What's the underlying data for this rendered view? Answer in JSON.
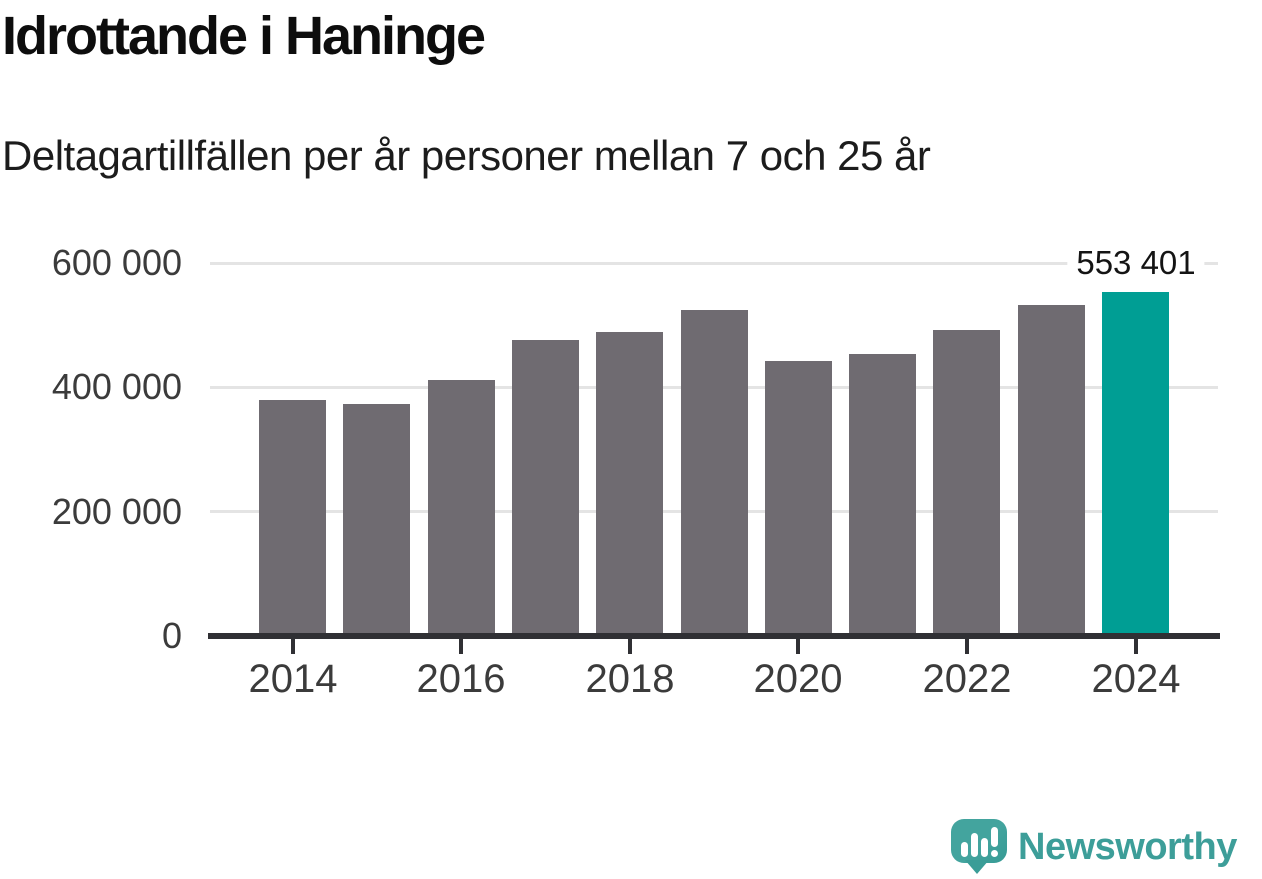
{
  "title": "Idrottande i Haninge",
  "subtitle": "Deltagartillfällen per år personer mellan 7 och 25 år",
  "chart_data": {
    "type": "bar",
    "title": "Idrottande i Haninge",
    "subtitle": "Deltagartillfällen per år personer mellan 7 och 25 år",
    "categories": [
      "2014",
      "2015",
      "2016",
      "2017",
      "2018",
      "2019",
      "2020",
      "2021",
      "2022",
      "2023",
      "2024"
    ],
    "values": [
      380000,
      373000,
      412000,
      476000,
      489000,
      524000,
      442000,
      454000,
      492000,
      532000,
      553401
    ],
    "highlight": {
      "category": "2024",
      "value": 553401,
      "value_label": "553 401"
    },
    "yticks": [
      {
        "value": 0,
        "label": "0"
      },
      {
        "value": 200000,
        "label": "200 000"
      },
      {
        "value": 400000,
        "label": "400 000"
      },
      {
        "value": 600000,
        "label": "600 000"
      }
    ],
    "xtick_labels": [
      "2014",
      "2016",
      "2018",
      "2020",
      "2022",
      "2024"
    ],
    "ylim": [
      0,
      600000
    ],
    "grid": "horizontal",
    "legend": "none",
    "colors": {
      "bar": "#6f6b71",
      "highlight": "#009e94",
      "gridline": "#e4e4e4",
      "axis": "#303034",
      "tick_label": "#3b3b3b",
      "annotation_text": "#141414"
    }
  },
  "footer": {
    "brand": "Newsworthy",
    "logo_icon": "speech-bubble-bar-chart-icon",
    "brand_color": "#3d9e99"
  }
}
